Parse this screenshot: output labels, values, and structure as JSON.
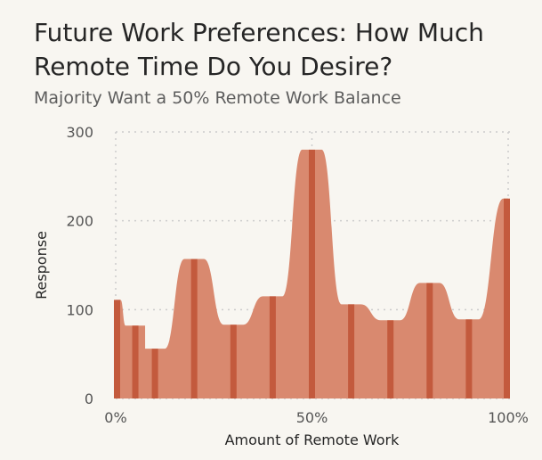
{
  "title": "Future Work Preferences: How Much Remote Time Do You Desire?",
  "subtitle": "Majority Want a 50% Remote Work Balance",
  "colors": {
    "background": "#f8f6f1",
    "area_fill": "#d9896f",
    "bar_fill": "#c35a3d",
    "grid": "#cccccc"
  },
  "chart_data": {
    "type": "area",
    "title": "Future Work Preferences: How Much Remote Time Do You Desire?",
    "subtitle": "Majority Want a 50% Remote Work Balance",
    "xlabel": "Amount of Remote Work",
    "ylabel": "Response",
    "x": [
      0,
      5,
      10,
      20,
      30,
      40,
      50,
      60,
      70,
      80,
      90,
      100
    ],
    "values": [
      111,
      82,
      56,
      157,
      83,
      115,
      280,
      106,
      88,
      130,
      89,
      225
    ],
    "xlim": [
      0,
      100
    ],
    "ylim": [
      0,
      300
    ],
    "x_ticks": [
      {
        "value": 0,
        "label": "0%"
      },
      {
        "value": 50,
        "label": "50%"
      },
      {
        "value": 100,
        "label": "100%"
      }
    ],
    "y_ticks": [
      {
        "value": 0,
        "label": "0"
      },
      {
        "value": 100,
        "label": "100"
      },
      {
        "value": 200,
        "label": "200"
      },
      {
        "value": 300,
        "label": "300"
      }
    ],
    "grid": true,
    "legend": "none"
  }
}
